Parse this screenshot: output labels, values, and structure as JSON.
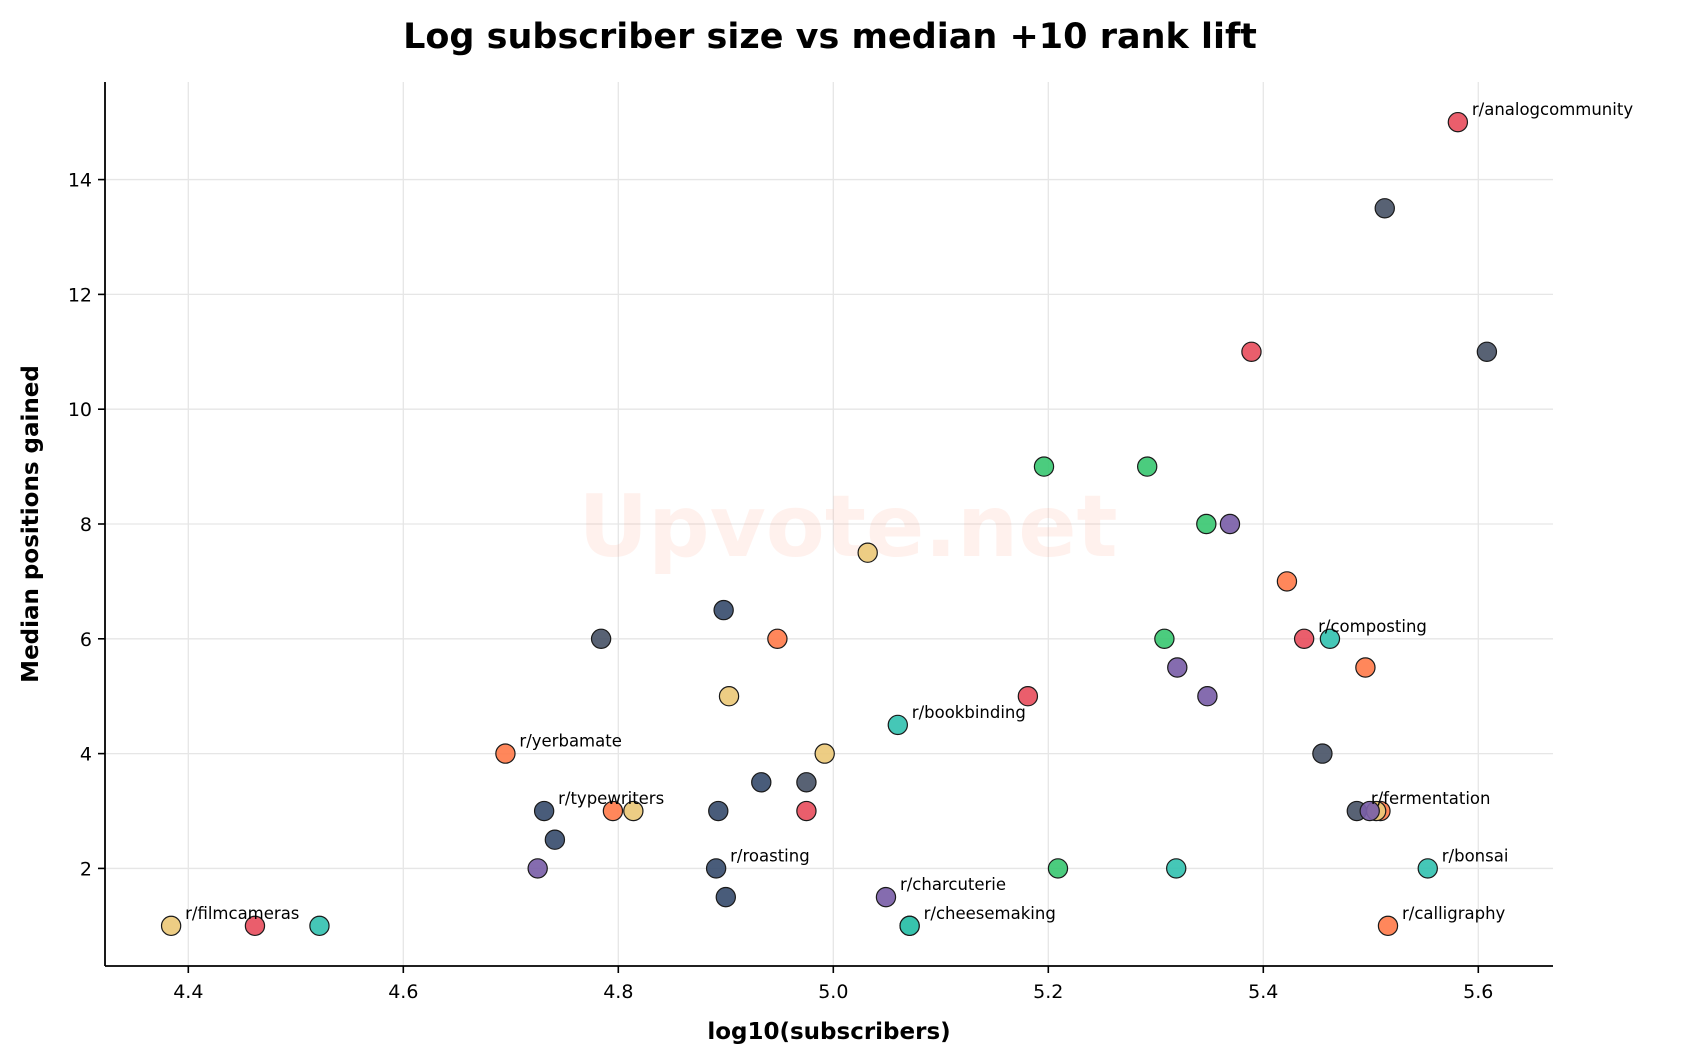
{
  "chart_data": {
    "type": "scatter",
    "title": "Log subscriber size vs median +10 rank lift",
    "xlabel": "log10(subscribers)",
    "ylabel": "Median positions gained",
    "xlim": [
      4.3225,
      5.6695
    ],
    "ylim": [
      0.3,
      15.7
    ],
    "xticks": [
      "4.4",
      "4.6",
      "4.8",
      "5.0",
      "5.2",
      "5.4",
      "5.6"
    ],
    "yticks": [
      "2",
      "4",
      "6",
      "8",
      "10",
      "12",
      "14"
    ],
    "grid": true,
    "watermark": "Upvote.net",
    "colors": {
      "red": "#e8505f",
      "slate": "#4a5568",
      "navy": "#3a4e6f",
      "green": "#3cc873",
      "purple": "#7b5fa8",
      "yellow": "#ecc97a",
      "orange": "#ff7d4d",
      "teal": "#35c2b1"
    },
    "points": [
      {
        "x": 5.581,
        "y": 15,
        "color": "red",
        "label": "r/analogcommunity"
      },
      {
        "x": 5.513,
        "y": 13.5,
        "color": "slate"
      },
      {
        "x": 5.389,
        "y": 11,
        "color": "red"
      },
      {
        "x": 5.608,
        "y": 11,
        "color": "slate"
      },
      {
        "x": 5.196,
        "y": 9,
        "color": "green"
      },
      {
        "x": 5.292,
        "y": 9,
        "color": "green"
      },
      {
        "x": 5.347,
        "y": 8,
        "color": "green"
      },
      {
        "x": 5.369,
        "y": 8,
        "color": "purple"
      },
      {
        "x": 5.032,
        "y": 7.5,
        "color": "yellow"
      },
      {
        "x": 5.422,
        "y": 7,
        "color": "orange"
      },
      {
        "x": 4.898,
        "y": 6.5,
        "color": "navy"
      },
      {
        "x": 4.784,
        "y": 6,
        "color": "slate"
      },
      {
        "x": 4.948,
        "y": 6,
        "color": "orange"
      },
      {
        "x": 5.308,
        "y": 6,
        "color": "green"
      },
      {
        "x": 5.438,
        "y": 6,
        "color": "red",
        "label": "r/composting"
      },
      {
        "x": 5.462,
        "y": 6,
        "color": "teal"
      },
      {
        "x": 5.32,
        "y": 5.5,
        "color": "purple"
      },
      {
        "x": 5.495,
        "y": 5.5,
        "color": "orange"
      },
      {
        "x": 4.903,
        "y": 5,
        "color": "yellow"
      },
      {
        "x": 5.181,
        "y": 5,
        "color": "red"
      },
      {
        "x": 5.348,
        "y": 5,
        "color": "purple"
      },
      {
        "x": 5.06,
        "y": 4.5,
        "color": "teal",
        "label": "r/bookbinding"
      },
      {
        "x": 4.695,
        "y": 4,
        "color": "orange",
        "label": "r/yerbamate"
      },
      {
        "x": 4.992,
        "y": 4,
        "color": "yellow"
      },
      {
        "x": 5.455,
        "y": 4,
        "color": "slate"
      },
      {
        "x": 4.933,
        "y": 3.5,
        "color": "navy"
      },
      {
        "x": 4.975,
        "y": 3.5,
        "color": "slate"
      },
      {
        "x": 4.731,
        "y": 3,
        "color": "navy",
        "label": "r/typewriters"
      },
      {
        "x": 4.795,
        "y": 3,
        "color": "orange"
      },
      {
        "x": 4.814,
        "y": 3,
        "color": "yellow"
      },
      {
        "x": 4.893,
        "y": 3,
        "color": "navy"
      },
      {
        "x": 4.975,
        "y": 3,
        "color": "red"
      },
      {
        "x": 5.509,
        "y": 3,
        "color": "orange"
      },
      {
        "x": 5.505,
        "y": 3,
        "color": "yellow"
      },
      {
        "x": 5.487,
        "y": 3,
        "color": "slate",
        "label": "r/fermentation"
      },
      {
        "x": 5.499,
        "y": 3,
        "color": "purple"
      },
      {
        "x": 4.741,
        "y": 2.5,
        "color": "navy"
      },
      {
        "x": 4.725,
        "y": 2,
        "color": "purple"
      },
      {
        "x": 4.891,
        "y": 2,
        "color": "navy",
        "label": "r/roasting"
      },
      {
        "x": 5.209,
        "y": 2,
        "color": "green"
      },
      {
        "x": 5.319,
        "y": 2,
        "color": "teal"
      },
      {
        "x": 5.553,
        "y": 2,
        "color": "teal",
        "label": "r/bonsai"
      },
      {
        "x": 4.9,
        "y": 1.5,
        "color": "navy"
      },
      {
        "x": 5.049,
        "y": 1.5,
        "color": "purple",
        "label": "r/charcuterie"
      },
      {
        "x": 5.071,
        "y": 1,
        "color": "green"
      },
      {
        "x": 5.071,
        "y": 1,
        "color": "teal",
        "label": "r/cheesemaking"
      },
      {
        "x": 4.384,
        "y": 1,
        "color": "yellow",
        "label": "r/filmcameras"
      },
      {
        "x": 4.462,
        "y": 1,
        "color": "red"
      },
      {
        "x": 4.522,
        "y": 1,
        "color": "teal"
      },
      {
        "x": 5.516,
        "y": 1,
        "color": "orange",
        "label": "r/calligraphy"
      }
    ]
  }
}
